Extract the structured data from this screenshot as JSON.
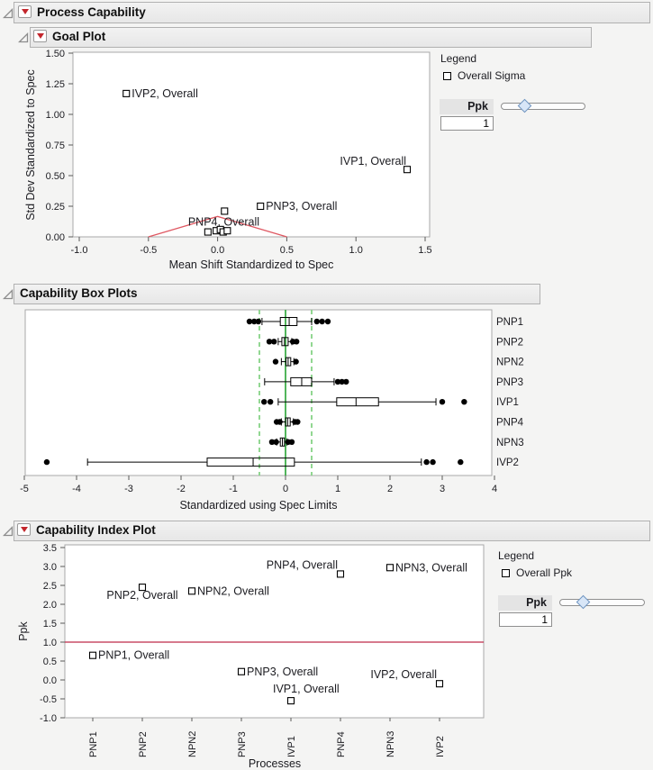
{
  "outline": {
    "process_capability": {
      "title": "Process Capability"
    },
    "goal_plot": {
      "title": "Goal Plot"
    },
    "capability_box_plots": {
      "title": "Capability Box Plots"
    },
    "capability_index_plot": {
      "title": "Capability Index Plot"
    }
  },
  "goal_panel": {
    "legend_title": "Legend",
    "legend_item": "Overall Sigma",
    "slider_label": "Ppk",
    "slider_value": "1"
  },
  "index_panel": {
    "legend_title": "Legend",
    "legend_item": "Overall Ppk",
    "slider_label": "Ppk",
    "slider_value": "1"
  },
  "colors": {
    "goal_line_red": "#df5862",
    "ppk_ref_red": "#bf2b49",
    "center_green": "#3fae4a",
    "limit_green": "#86d386",
    "red_triangle": "#c3262c",
    "marker_stroke": "#000000"
  },
  "chart_data": [
    {
      "type": "scatter",
      "name": "goal-plot",
      "xlabel": "Mean Shift Standardized to Spec",
      "ylabel": "Std Dev Standardized to Spec",
      "xlim": [
        -1.0,
        1.5
      ],
      "ylim": [
        0,
        1.5
      ],
      "xticks": [
        "-1.0",
        "-0.5",
        "0.0",
        "0.5",
        "1.0",
        "1.5"
      ],
      "yticks": [
        "0.00",
        "0.25",
        "0.50",
        "0.75",
        "1.00",
        "1.25",
        "1.50"
      ],
      "goal_line": {
        "vertices": [
          [
            -0.5,
            0
          ],
          [
            0,
            0.1667
          ],
          [
            0.5,
            0
          ]
        ]
      },
      "points": [
        {
          "name": "IVP2, Overall",
          "x": -0.66,
          "y": 1.17,
          "label_pos": "right"
        },
        {
          "name": "IVP1, Overall",
          "x": 1.37,
          "y": 0.55,
          "label_pos": "left-above"
        },
        {
          "name": "PNP3, Overall",
          "x": 0.31,
          "y": 0.25,
          "label_pos": "right"
        },
        {
          "name": "PNP4, Overall",
          "x": -0.07,
          "y": 0.04,
          "label_pos": "above-left-start"
        },
        {
          "x": 0.05,
          "y": 0.21
        },
        {
          "x": -0.01,
          "y": 0.05
        },
        {
          "x": 0.02,
          "y": 0.06
        },
        {
          "x": 0.04,
          "y": 0.04
        },
        {
          "x": 0.07,
          "y": 0.05
        }
      ],
      "legend": {
        "title": "Legend",
        "items": [
          "Overall Sigma"
        ]
      }
    },
    {
      "type": "boxplot",
      "name": "capability-box-plots",
      "orientation": "horizontal",
      "xlabel": "Standardized using Spec Limits",
      "xlim": [
        -5,
        4
      ],
      "xticks": [
        "-5",
        "-4",
        "-3",
        "-2",
        "-1",
        "0",
        "1",
        "2",
        "3",
        "4"
      ],
      "ref_lines": {
        "center": 0,
        "limits": [
          -0.5,
          0.5
        ]
      },
      "rows": [
        {
          "label": "PNP1",
          "low": -0.45,
          "q1": -0.1,
          "median": 0.07,
          "q3": 0.22,
          "high": 0.5,
          "outliers": [
            -0.69,
            -0.6,
            -0.52,
            0.6,
            0.7,
            0.81
          ]
        },
        {
          "label": "PNP2",
          "low": -0.14,
          "q1": -0.07,
          "median": -0.02,
          "q3": 0.05,
          "high": 0.12,
          "outliers": [
            -0.31,
            -0.22,
            0.14,
            0.21
          ]
        },
        {
          "label": "NPN2",
          "low": -0.08,
          "q1": 0.01,
          "median": 0.05,
          "q3": 0.1,
          "high": 0.16,
          "outliers": [
            -0.19,
            0.2
          ]
        },
        {
          "label": "PNP3",
          "low": -0.4,
          "q1": 0.1,
          "median": 0.31,
          "q3": 0.5,
          "high": 0.93,
          "outliers": [
            1.0,
            1.08,
            1.16
          ]
        },
        {
          "label": "IVP1",
          "low": -0.14,
          "q1": 0.98,
          "median": 1.35,
          "q3": 1.78,
          "high": 2.88,
          "outliers": [
            -0.41,
            -0.29,
            3.0,
            3.42
          ]
        },
        {
          "label": "PNP4",
          "low": -0.08,
          "q1": 0.0,
          "median": 0.04,
          "q3": 0.09,
          "high": 0.15,
          "outliers": [
            -0.17,
            -0.11,
            0.18,
            0.23
          ]
        },
        {
          "label": "NPN3",
          "low": -0.17,
          "q1": -0.1,
          "median": -0.06,
          "q3": -0.02,
          "high": 0.03,
          "outliers": [
            -0.26,
            -0.18,
            0.05,
            0.12
          ]
        },
        {
          "label": "IVP2",
          "low": -3.79,
          "q1": -1.5,
          "median": -0.62,
          "q3": 0.17,
          "high": 2.6,
          "outliers": [
            -4.57,
            2.7,
            2.82,
            3.35
          ]
        }
      ]
    },
    {
      "type": "scatter",
      "name": "capability-index-plot",
      "xlabel": "Processes",
      "ylabel": "Ppk",
      "ylim": [
        -1.0,
        3.5
      ],
      "yticks": [
        "3.5",
        "3.0",
        "2.5",
        "2.0",
        "1.5",
        "1.0",
        "0.5",
        "0.0",
        "-0.5",
        "-1.0"
      ],
      "categories": [
        "PNP1",
        "PNP2",
        "NPN2",
        "PNP3",
        "IVP1",
        "PNP4",
        "NPN3",
        "IVP2"
      ],
      "ref_line": 1.0,
      "points": [
        {
          "category": "PNP1",
          "value": 0.65,
          "name": "PNP1, Overall",
          "label_pos": "right"
        },
        {
          "category": "PNP2",
          "value": 2.45,
          "name": "PNP2, Overall",
          "label_pos": "below"
        },
        {
          "category": "NPN2",
          "value": 2.35,
          "name": "NPN2, Overall",
          "label_pos": "right"
        },
        {
          "category": "PNP3",
          "value": 0.22,
          "name": "PNP3, Overall",
          "label_pos": "right"
        },
        {
          "category": "IVP1",
          "value": -0.55,
          "name": "IVP1, Overall",
          "label_pos": "above-start"
        },
        {
          "category": "PNP4",
          "value": 2.8,
          "name": "PNP4, Overall",
          "label_pos": "above-left"
        },
        {
          "category": "NPN3",
          "value": 2.97,
          "name": "NPN3, Overall",
          "label_pos": "right"
        },
        {
          "category": "IVP2",
          "value": -0.1,
          "name": "IVP2, Overall",
          "label_pos": "above-left"
        }
      ],
      "legend": {
        "title": "Legend",
        "items": [
          "Overall Ppk"
        ]
      }
    }
  ]
}
